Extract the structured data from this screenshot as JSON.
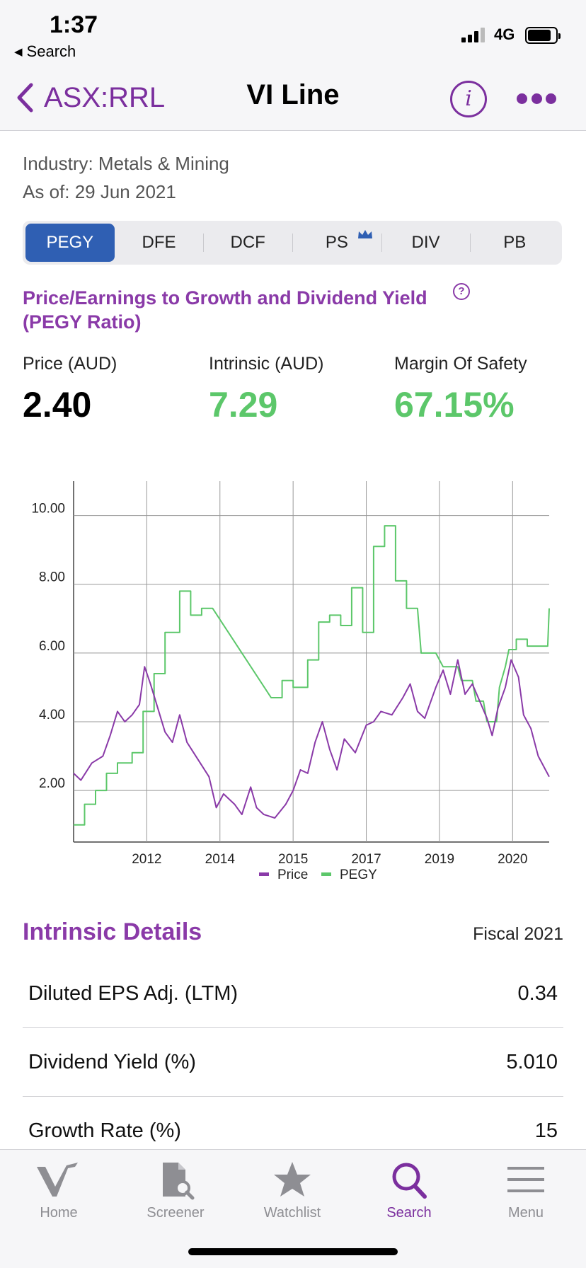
{
  "status_bar": {
    "time": "1:37",
    "back_app": "Search",
    "network": "4G"
  },
  "nav": {
    "back_label": "ASX:RRL",
    "title": "VI Line"
  },
  "header": {
    "industry": "Industry: Metals & Mining",
    "as_of": "As of: 29 Jun 2021"
  },
  "segments": [
    "PEGY",
    "DFE",
    "DCF",
    "PS",
    "DIV",
    "PB"
  ],
  "ratio_title": "Price/Earnings to Growth and Dividend Yield (PEGY Ratio)",
  "kpis": {
    "price_label": "Price (AUD)",
    "price_value": "2.40",
    "intrinsic_label": "Intrinsic (AUD)",
    "intrinsic_value": "7.29",
    "mos_label": "Margin Of Safety",
    "mos_value": "67.15%"
  },
  "chart_data": {
    "type": "line",
    "ylim": [
      0.5,
      11.0
    ],
    "y_ticks": [
      "10.00",
      "8.00",
      "6.00",
      "4.00",
      "2.00"
    ],
    "y_tick_values": [
      10,
      8,
      6,
      4,
      2
    ],
    "x_ticks": [
      "2012",
      "2014",
      "2015",
      "2017",
      "2019",
      "2020"
    ],
    "x_tick_positions": [
      1,
      2,
      3,
      4,
      5,
      6
    ],
    "xlim": [
      0,
      6.5
    ],
    "legend": [
      "Price",
      "PEGY"
    ],
    "series": [
      {
        "name": "Price",
        "color": "#8a3aa8",
        "points": [
          [
            0,
            2.5
          ],
          [
            0.1,
            2.3
          ],
          [
            0.25,
            2.8
          ],
          [
            0.4,
            3.0
          ],
          [
            0.5,
            3.6
          ],
          [
            0.6,
            4.3
          ],
          [
            0.7,
            4.0
          ],
          [
            0.8,
            4.2
          ],
          [
            0.9,
            4.5
          ],
          [
            0.97,
            5.6
          ],
          [
            1.05,
            5.1
          ],
          [
            1.15,
            4.4
          ],
          [
            1.25,
            3.7
          ],
          [
            1.35,
            3.4
          ],
          [
            1.45,
            4.2
          ],
          [
            1.55,
            3.4
          ],
          [
            1.7,
            2.9
          ],
          [
            1.85,
            2.4
          ],
          [
            1.95,
            1.5
          ],
          [
            2.05,
            1.9
          ],
          [
            2.2,
            1.6
          ],
          [
            2.3,
            1.3
          ],
          [
            2.42,
            2.1
          ],
          [
            2.5,
            1.5
          ],
          [
            2.6,
            1.3
          ],
          [
            2.75,
            1.2
          ],
          [
            2.9,
            1.6
          ],
          [
            3.0,
            2.0
          ],
          [
            3.1,
            2.6
          ],
          [
            3.2,
            2.5
          ],
          [
            3.3,
            3.4
          ],
          [
            3.4,
            4.0
          ],
          [
            3.5,
            3.2
          ],
          [
            3.6,
            2.6
          ],
          [
            3.7,
            3.5
          ],
          [
            3.85,
            3.1
          ],
          [
            4.0,
            3.9
          ],
          [
            4.1,
            4.0
          ],
          [
            4.2,
            4.3
          ],
          [
            4.35,
            4.2
          ],
          [
            4.5,
            4.7
          ],
          [
            4.6,
            5.1
          ],
          [
            4.7,
            4.3
          ],
          [
            4.8,
            4.1
          ],
          [
            4.95,
            5.0
          ],
          [
            5.05,
            5.5
          ],
          [
            5.15,
            4.8
          ],
          [
            5.25,
            5.8
          ],
          [
            5.35,
            4.8
          ],
          [
            5.45,
            5.1
          ],
          [
            5.55,
            4.6
          ],
          [
            5.65,
            4.1
          ],
          [
            5.72,
            3.6
          ],
          [
            5.8,
            4.4
          ],
          [
            5.9,
            5.0
          ],
          [
            5.98,
            5.8
          ],
          [
            6.08,
            5.3
          ],
          [
            6.15,
            4.2
          ],
          [
            6.25,
            3.8
          ],
          [
            6.35,
            3.0
          ],
          [
            6.45,
            2.6
          ],
          [
            6.5,
            2.4
          ]
        ]
      },
      {
        "name": "PEGY",
        "color": "#5cc76a",
        "points": [
          [
            0,
            1.0
          ],
          [
            0.15,
            1.0
          ],
          [
            0.15,
            1.6
          ],
          [
            0.3,
            1.6
          ],
          [
            0.3,
            2.0
          ],
          [
            0.45,
            2.0
          ],
          [
            0.45,
            2.5
          ],
          [
            0.6,
            2.5
          ],
          [
            0.6,
            2.8
          ],
          [
            0.8,
            2.8
          ],
          [
            0.8,
            3.1
          ],
          [
            0.95,
            3.1
          ],
          [
            0.95,
            4.3
          ],
          [
            1.1,
            4.3
          ],
          [
            1.1,
            5.4
          ],
          [
            1.25,
            5.4
          ],
          [
            1.25,
            6.6
          ],
          [
            1.45,
            6.6
          ],
          [
            1.45,
            7.8
          ],
          [
            1.6,
            7.8
          ],
          [
            1.6,
            7.1
          ],
          [
            1.75,
            7.1
          ],
          [
            1.75,
            7.3
          ],
          [
            1.9,
            7.3
          ],
          [
            2.7,
            4.7
          ],
          [
            2.85,
            4.7
          ],
          [
            2.85,
            5.2
          ],
          [
            3.0,
            5.2
          ],
          [
            3.0,
            5.0
          ],
          [
            3.2,
            5.0
          ],
          [
            3.2,
            5.8
          ],
          [
            3.35,
            5.8
          ],
          [
            3.35,
            6.9
          ],
          [
            3.5,
            6.9
          ],
          [
            3.5,
            7.1
          ],
          [
            3.65,
            7.1
          ],
          [
            3.65,
            6.8
          ],
          [
            3.8,
            6.8
          ],
          [
            3.8,
            7.9
          ],
          [
            3.95,
            7.9
          ],
          [
            3.95,
            6.6
          ],
          [
            4.1,
            6.6
          ],
          [
            4.1,
            9.1
          ],
          [
            4.25,
            9.1
          ],
          [
            4.25,
            9.7
          ],
          [
            4.4,
            9.7
          ],
          [
            4.4,
            8.1
          ],
          [
            4.55,
            8.1
          ],
          [
            4.55,
            7.3
          ],
          [
            4.7,
            7.3
          ],
          [
            4.75,
            6.0
          ],
          [
            4.95,
            6.0
          ],
          [
            5.05,
            5.6
          ],
          [
            5.25,
            5.6
          ],
          [
            5.3,
            5.2
          ],
          [
            5.45,
            5.2
          ],
          [
            5.5,
            4.6
          ],
          [
            5.6,
            4.6
          ],
          [
            5.65,
            4.0
          ],
          [
            5.78,
            4.0
          ],
          [
            5.82,
            5.0
          ],
          [
            5.9,
            5.6
          ],
          [
            5.95,
            6.1
          ],
          [
            6.05,
            6.1
          ],
          [
            6.05,
            6.4
          ],
          [
            6.2,
            6.4
          ],
          [
            6.2,
            6.2
          ],
          [
            6.48,
            6.2
          ],
          [
            6.5,
            7.3
          ]
        ]
      }
    ]
  },
  "details": {
    "title": "Intrinsic Details",
    "fiscal": "Fiscal 2021",
    "rows": [
      {
        "label": "Diluted EPS Adj. (LTM)",
        "value": "0.34"
      },
      {
        "label": "Dividend Yield (%)",
        "value": "5.010"
      },
      {
        "label": "Growth Rate (%)",
        "value": "15"
      }
    ]
  },
  "tabs": [
    "Home",
    "Screener",
    "Watchlist",
    "Search",
    "Menu"
  ],
  "colors": {
    "accent": "#7b2f9e",
    "segment_active": "#2f5fb3",
    "positive": "#5cc76a"
  }
}
